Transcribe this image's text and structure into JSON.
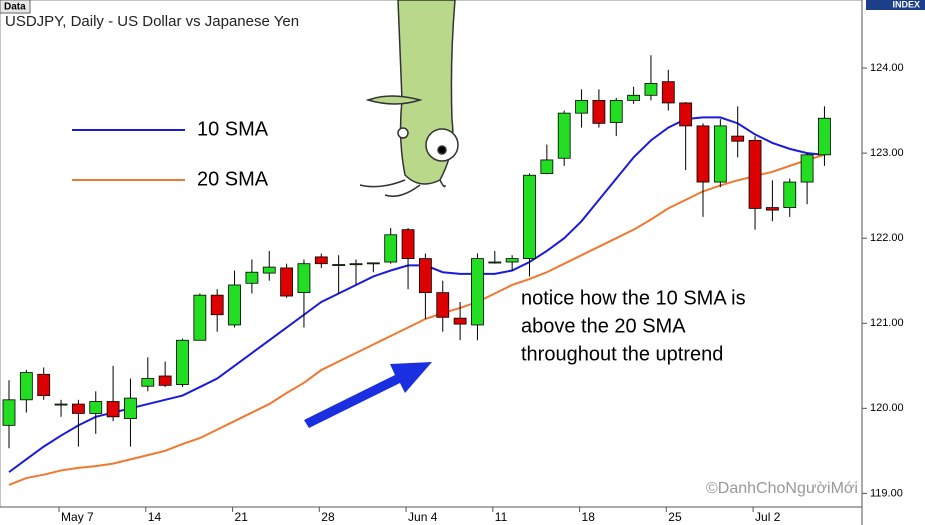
{
  "chart_data": {
    "type": "candlestick",
    "tab": "Data",
    "title": "USDJPY, Daily - US Dollar vs Japanese Yen",
    "axis_label": "INDEX",
    "watermark": "©DanhChoNgườiMới",
    "annotation": [
      "notice how the 10 SMA is",
      "above the 20 SMA",
      "throughout the uptrend"
    ],
    "categories": [
      null,
      null,
      null,
      "May 7",
      null,
      null,
      null,
      null,
      "14",
      null,
      null,
      null,
      null,
      "21",
      null,
      null,
      null,
      null,
      "28",
      null,
      null,
      null,
      null,
      "Jun 4",
      null,
      null,
      null,
      null,
      "11",
      null,
      null,
      null,
      null,
      "18",
      null,
      null,
      null,
      null,
      "25",
      null,
      null,
      null,
      null,
      "Jul 2",
      null,
      null,
      null,
      null
    ],
    "candles": {
      "up_color": "#22dd22",
      "down_color": "#dd0000",
      "open": [
        119.8,
        120.1,
        120.4,
        120.05,
        120.05,
        119.94,
        120.08,
        119.88,
        120.26,
        120.38,
        120.28,
        120.8,
        121.33,
        120.98,
        121.47,
        121.59,
        121.65,
        121.36,
        121.78,
        121.69,
        121.69,
        121.7,
        121.72,
        122.1,
        121.76,
        121.36,
        121.06,
        120.98,
        121.72,
        121.72,
        121.76,
        122.76,
        122.94,
        123.47,
        123.62,
        123.36,
        123.62,
        123.68,
        123.84,
        123.59,
        123.32,
        122.66,
        123.2,
        123.15,
        122.36,
        122.36,
        122.66,
        122.98
      ],
      "high": [
        120.33,
        120.45,
        120.48,
        120.1,
        120.1,
        120.2,
        120.5,
        120.35,
        120.6,
        120.55,
        120.82,
        121.35,
        121.4,
        121.62,
        121.75,
        121.85,
        121.7,
        121.75,
        121.82,
        121.8,
        121.75,
        121.7,
        122.12,
        122.12,
        121.82,
        121.5,
        121.25,
        121.82,
        121.85,
        121.8,
        122.76,
        123.1,
        123.5,
        123.75,
        123.75,
        123.65,
        123.78,
        124.15,
        123.98,
        123.6,
        123.35,
        123.4,
        123.55,
        123.2,
        122.68,
        122.7,
        123.0,
        123.55
      ],
      "low": [
        119.53,
        119.95,
        120.1,
        119.9,
        119.55,
        119.7,
        119.85,
        119.55,
        120.2,
        120.25,
        120.25,
        120.8,
        120.9,
        120.95,
        121.35,
        121.5,
        121.3,
        120.95,
        121.65,
        121.35,
        121.45,
        121.6,
        121.7,
        121.4,
        121.05,
        120.9,
        120.8,
        120.8,
        121.7,
        121.62,
        121.55,
        122.75,
        122.85,
        123.3,
        123.3,
        123.2,
        123.58,
        123.62,
        123.5,
        122.8,
        122.25,
        122.6,
        122.95,
        122.1,
        122.2,
        122.25,
        122.4,
        122.85
      ],
      "close": [
        120.1,
        120.42,
        120.15,
        120.05,
        119.94,
        120.08,
        119.9,
        120.12,
        120.35,
        120.27,
        120.8,
        121.33,
        121.1,
        121.45,
        121.6,
        121.66,
        121.32,
        121.7,
        121.7,
        121.69,
        121.7,
        121.71,
        122.04,
        121.76,
        121.36,
        121.07,
        120.99,
        121.76,
        121.72,
        121.76,
        122.74,
        122.92,
        123.47,
        123.62,
        123.35,
        123.62,
        123.68,
        123.82,
        123.59,
        123.32,
        122.66,
        123.32,
        123.14,
        122.35,
        122.33,
        122.66,
        122.98,
        123.41
      ]
    },
    "series": [
      {
        "name": "10 SMA",
        "color": "#1a1adb",
        "values": [
          119.25,
          119.4,
          119.55,
          119.68,
          119.8,
          119.9,
          119.95,
          120.0,
          120.05,
          120.1,
          120.15,
          120.25,
          120.35,
          120.5,
          120.65,
          120.8,
          120.95,
          121.1,
          121.25,
          121.35,
          121.45,
          121.55,
          121.62,
          121.68,
          121.68,
          121.6,
          121.58,
          121.58,
          121.58,
          121.62,
          121.72,
          121.85,
          122.0,
          122.2,
          122.45,
          122.7,
          122.95,
          123.15,
          123.3,
          123.4,
          123.42,
          123.42,
          123.35,
          123.22,
          123.12,
          123.05,
          123.0,
          122.98
        ]
      },
      {
        "name": "20 SMA",
        "color": "#f07830",
        "values": [
          119.1,
          119.18,
          119.22,
          119.27,
          119.3,
          119.32,
          119.35,
          119.4,
          119.45,
          119.5,
          119.58,
          119.65,
          119.75,
          119.85,
          119.95,
          120.05,
          120.18,
          120.3,
          120.45,
          120.55,
          120.65,
          120.75,
          120.85,
          120.95,
          121.05,
          121.12,
          121.18,
          121.25,
          121.35,
          121.45,
          121.52,
          121.6,
          121.7,
          121.8,
          121.9,
          122.0,
          122.1,
          122.22,
          122.35,
          122.45,
          122.55,
          122.62,
          122.68,
          122.73,
          122.78,
          122.85,
          122.92,
          122.98
        ]
      }
    ],
    "ylim": [
      118.84,
      124.8
    ],
    "yticks": [
      {
        "value": 119,
        "label": "119.00"
      },
      {
        "value": 120,
        "label": "120.00"
      },
      {
        "value": 121,
        "label": "121.00"
      },
      {
        "value": 122,
        "label": "122.00"
      },
      {
        "value": 123,
        "label": "123.00"
      },
      {
        "value": 124,
        "label": "124.00"
      }
    ]
  }
}
